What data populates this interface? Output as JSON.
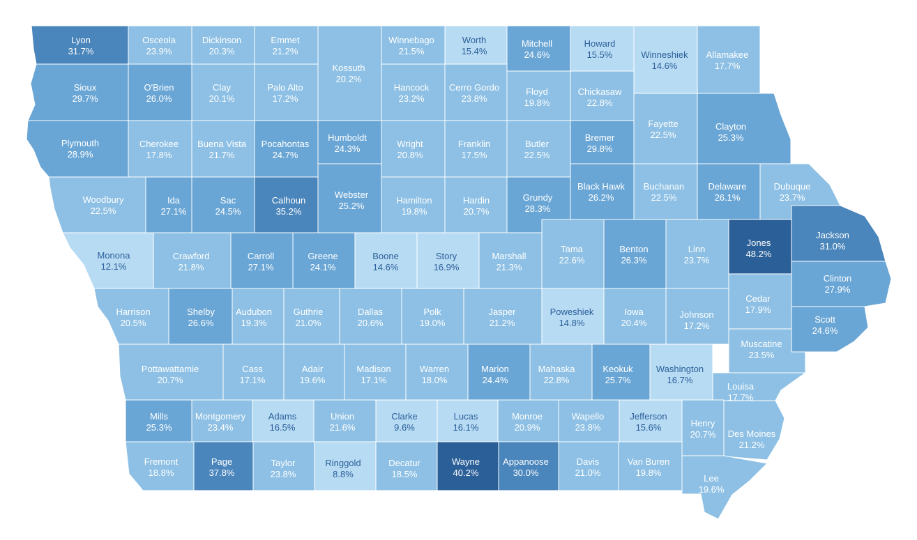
{
  "colors": {
    "level1": "#b8dbf4",
    "level2": "#8dc0e4",
    "level3": "#6aa6d5",
    "level4": "#4a85bb",
    "level5": "#2b5f98",
    "label_light": "#ffffff",
    "label_dark": "#2b5f98"
  },
  "counties": [
    {
      "name": "Lyon",
      "value": "31.7%"
    },
    {
      "name": "Osceola",
      "value": "23.9%"
    },
    {
      "name": "Dickinson",
      "value": "20.3%"
    },
    {
      "name": "Emmet",
      "value": "21.2%"
    },
    {
      "name": "Kossuth",
      "value": "20.2%"
    },
    {
      "name": "Winnebago",
      "value": "21.5%"
    },
    {
      "name": "Worth",
      "value": "15.4%"
    },
    {
      "name": "Mitchell",
      "value": "24.6%"
    },
    {
      "name": "Howard",
      "value": "15.5%"
    },
    {
      "name": "Winneshiek",
      "value": "14.6%"
    },
    {
      "name": "Allamakee",
      "value": "17.7%"
    },
    {
      "name": "Sioux",
      "value": "29.7%"
    },
    {
      "name": "O'Brien",
      "value": "26.0%"
    },
    {
      "name": "Clay",
      "value": "20.1%"
    },
    {
      "name": "Palo Alto",
      "value": "17.2%"
    },
    {
      "name": "Hancock",
      "value": "23.2%"
    },
    {
      "name": "Cerro Gordo",
      "value": "23.8%"
    },
    {
      "name": "Floyd",
      "value": "19.8%"
    },
    {
      "name": "Chickasaw",
      "value": "22.8%"
    },
    {
      "name": "Fayette",
      "value": "22.5%"
    },
    {
      "name": "Clayton",
      "value": "25.3%"
    },
    {
      "name": "Plymouth",
      "value": "28.9%"
    },
    {
      "name": "Cherokee",
      "value": "17.8%"
    },
    {
      "name": "Buena Vista",
      "value": "21.7%"
    },
    {
      "name": "Pocahontas",
      "value": "24.7%"
    },
    {
      "name": "Humboldt",
      "value": "24.3%"
    },
    {
      "name": "Wright",
      "value": "20.8%"
    },
    {
      "name": "Franklin",
      "value": "17.5%"
    },
    {
      "name": "Butler",
      "value": "22.5%"
    },
    {
      "name": "Bremer",
      "value": "29.8%"
    },
    {
      "name": "Woodbury",
      "value": "22.5%"
    },
    {
      "name": "Ida",
      "value": "27.1%"
    },
    {
      "name": "Sac",
      "value": "24.5%"
    },
    {
      "name": "Calhoun",
      "value": "35.2%"
    },
    {
      "name": "Webster",
      "value": "25.2%"
    },
    {
      "name": "Hamilton",
      "value": "19.8%"
    },
    {
      "name": "Hardin",
      "value": "20.7%"
    },
    {
      "name": "Grundy",
      "value": "28.3%"
    },
    {
      "name": "Black Hawk",
      "value": "26.2%"
    },
    {
      "name": "Buchanan",
      "value": "22.5%"
    },
    {
      "name": "Delaware",
      "value": "26.1%"
    },
    {
      "name": "Dubuque",
      "value": "23.7%"
    },
    {
      "name": "Monona",
      "value": "12.1%"
    },
    {
      "name": "Crawford",
      "value": "21.8%"
    },
    {
      "name": "Carroll",
      "value": "27.1%"
    },
    {
      "name": "Greene",
      "value": "24.1%"
    },
    {
      "name": "Boone",
      "value": "14.6%"
    },
    {
      "name": "Story",
      "value": "16.9%"
    },
    {
      "name": "Marshall",
      "value": "21.3%"
    },
    {
      "name": "Tama",
      "value": "22.6%"
    },
    {
      "name": "Benton",
      "value": "26.3%"
    },
    {
      "name": "Linn",
      "value": "23.7%"
    },
    {
      "name": "Jones",
      "value": "48.2%"
    },
    {
      "name": "Jackson",
      "value": "31.0%"
    },
    {
      "name": "Clinton",
      "value": "27.9%"
    },
    {
      "name": "Harrison",
      "value": "20.5%"
    },
    {
      "name": "Shelby",
      "value": "26.6%"
    },
    {
      "name": "Audubon",
      "value": "19.3%"
    },
    {
      "name": "Guthrie",
      "value": "21.0%"
    },
    {
      "name": "Dallas",
      "value": "20.6%"
    },
    {
      "name": "Polk",
      "value": "19.0%"
    },
    {
      "name": "Jasper",
      "value": "21.2%"
    },
    {
      "name": "Poweshiek",
      "value": "14.8%"
    },
    {
      "name": "Iowa",
      "value": "20.4%"
    },
    {
      "name": "Johnson",
      "value": "17.2%"
    },
    {
      "name": "Cedar",
      "value": "17.9%"
    },
    {
      "name": "Scott",
      "value": "24.6%"
    },
    {
      "name": "Muscatine",
      "value": "23.5%"
    },
    {
      "name": "Pottawattamie",
      "value": "20.7%"
    },
    {
      "name": "Cass",
      "value": "17.1%"
    },
    {
      "name": "Adair",
      "value": "19.6%"
    },
    {
      "name": "Madison",
      "value": "17.1%"
    },
    {
      "name": "Warren",
      "value": "18.0%"
    },
    {
      "name": "Marion",
      "value": "24.4%"
    },
    {
      "name": "Mahaska",
      "value": "22.8%"
    },
    {
      "name": "Keokuk",
      "value": "25.7%"
    },
    {
      "name": "Washington",
      "value": "16.7%"
    },
    {
      "name": "Louisa",
      "value": "17.7%"
    },
    {
      "name": "Mills",
      "value": "25.3%"
    },
    {
      "name": "Montgomery",
      "value": "23.4%"
    },
    {
      "name": "Adams",
      "value": "16.5%"
    },
    {
      "name": "Union",
      "value": "21.6%"
    },
    {
      "name": "Clarke",
      "value": "9.6%"
    },
    {
      "name": "Lucas",
      "value": "16.1%"
    },
    {
      "name": "Monroe",
      "value": "20.9%"
    },
    {
      "name": "Wapello",
      "value": "23.8%"
    },
    {
      "name": "Jefferson",
      "value": "15.6%"
    },
    {
      "name": "Henry",
      "value": "20.7%"
    },
    {
      "name": "Des Moines",
      "value": "21.2%"
    },
    {
      "name": "Fremont",
      "value": "18.8%"
    },
    {
      "name": "Page",
      "value": "37.8%"
    },
    {
      "name": "Taylor",
      "value": "23.8%"
    },
    {
      "name": "Ringgold",
      "value": "8.8%"
    },
    {
      "name": "Decatur",
      "value": "18.5%"
    },
    {
      "name": "Wayne",
      "value": "40.2%"
    },
    {
      "name": "Appanoose",
      "value": "30.0%"
    },
    {
      "name": "Davis",
      "value": "21.0%"
    },
    {
      "name": "Van Buren",
      "value": "19.8%"
    },
    {
      "name": "Lee",
      "value": "19.6%"
    }
  ]
}
